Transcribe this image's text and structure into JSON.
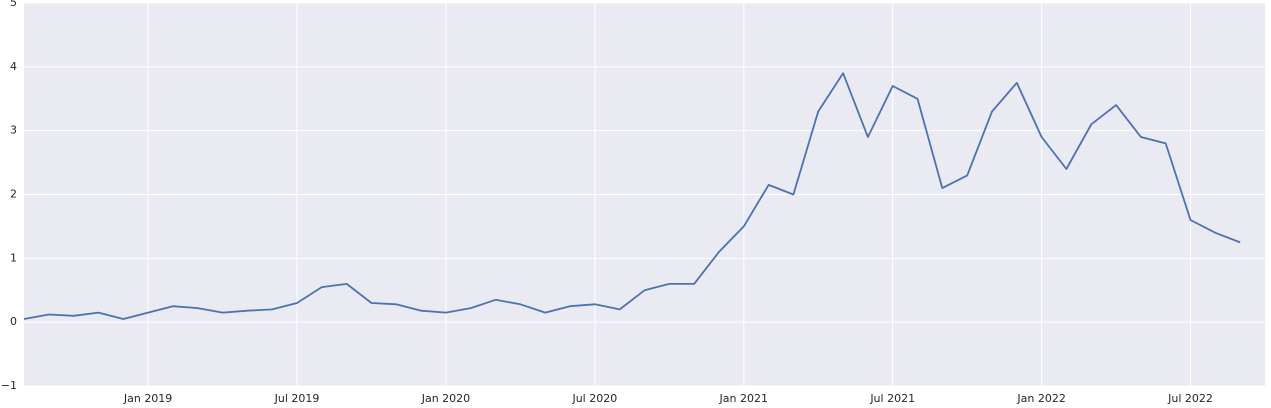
{
  "chart_data": {
    "type": "line",
    "x": [
      "2018-08",
      "2018-09",
      "2018-10",
      "2018-11",
      "2018-12",
      "2019-01",
      "2019-02",
      "2019-03",
      "2019-04",
      "2019-05",
      "2019-06",
      "2019-07",
      "2019-08",
      "2019-09",
      "2019-10",
      "2019-11",
      "2019-12",
      "2020-01",
      "2020-02",
      "2020-03",
      "2020-04",
      "2020-05",
      "2020-06",
      "2020-07",
      "2020-08",
      "2020-09",
      "2020-10",
      "2020-11",
      "2020-12",
      "2021-01",
      "2021-02",
      "2021-03",
      "2021-04",
      "2021-05",
      "2021-06",
      "2021-07",
      "2021-08",
      "2021-09",
      "2021-10",
      "2021-11",
      "2021-12",
      "2022-01",
      "2022-02",
      "2022-03",
      "2022-04",
      "2022-05",
      "2022-06",
      "2022-07",
      "2022-08",
      "2022-09"
    ],
    "series": [
      {
        "color": "#4c72b0",
        "values": [
          0.05,
          0.12,
          0.1,
          0.15,
          0.05,
          0.15,
          0.25,
          0.22,
          0.15,
          0.18,
          0.2,
          0.3,
          0.55,
          0.6,
          0.3,
          0.28,
          0.18,
          0.15,
          0.22,
          0.35,
          0.28,
          0.15,
          0.25,
          0.28,
          0.2,
          0.5,
          0.6,
          0.6,
          1.1,
          1.5,
          2.15,
          2.0,
          3.3,
          3.9,
          2.9,
          3.7,
          3.5,
          2.1,
          2.3,
          3.3,
          3.75,
          2.9,
          2.4,
          3.1,
          3.4,
          2.9,
          2.8,
          1.6,
          1.4,
          1.25
        ]
      }
    ],
    "xlim": [
      "2018-08",
      "2022-10"
    ],
    "xticks": [
      {
        "value": "2019-01",
        "label": "Jan 2019"
      },
      {
        "value": "2019-07",
        "label": "Jul 2019"
      },
      {
        "value": "2020-01",
        "label": "Jan 2020"
      },
      {
        "value": "2020-07",
        "label": "Jul 2020"
      },
      {
        "value": "2021-01",
        "label": "Jan 2021"
      },
      {
        "value": "2021-07",
        "label": "Jul 2021"
      },
      {
        "value": "2022-01",
        "label": "Jan 2022"
      },
      {
        "value": "2022-07",
        "label": "Jul 2022"
      }
    ],
    "ylim": [
      -1,
      5
    ],
    "yticks": [
      {
        "value": -1,
        "label": "−1"
      },
      0,
      1,
      2,
      3,
      4,
      5
    ],
    "grid": true
  }
}
